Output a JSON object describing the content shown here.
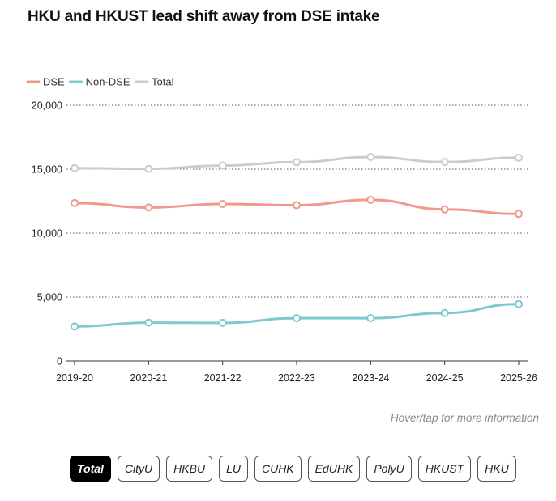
{
  "header": {
    "title": "HKU and HKUST lead shift away from DSE intake"
  },
  "hint": "Hover/tap for more information",
  "colors": {
    "DSE": "#f0988a",
    "Non-DSE": "#7ec9cf",
    "Total": "#cccccc",
    "grid": "#555555",
    "active_tab_bg": "#000000"
  },
  "tabs": {
    "items": [
      "Total",
      "CityU",
      "HKBU",
      "LU",
      "CUHK",
      "EdUHK",
      "PolyU",
      "HKUST",
      "HKU"
    ],
    "selected": "Total"
  },
  "chart_data": {
    "type": "line",
    "title": "HKU and HKUST lead shift away from DSE intake",
    "xlabel": "",
    "ylabel": "",
    "categories": [
      "2019-20",
      "2020-21",
      "2021-22",
      "2022-23",
      "2023-24",
      "2024-25",
      "2025-26"
    ],
    "ylim": [
      0,
      20000
    ],
    "yticks": [
      0,
      5000,
      10000,
      15000,
      20000
    ],
    "ytick_labels": [
      "0",
      "5,000",
      "10,000",
      "15,000",
      "20,000"
    ],
    "grid": "horizontal dotted",
    "legend_position": "top-left",
    "series": [
      {
        "name": "DSE",
        "values": [
          12350,
          12000,
          12280,
          12180,
          12600,
          11850,
          11500
        ]
      },
      {
        "name": "Non-DSE",
        "values": [
          2700,
          3000,
          2980,
          3350,
          3350,
          3750,
          4450
        ]
      },
      {
        "name": "Total",
        "values": [
          15080,
          15020,
          15280,
          15550,
          15950,
          15560,
          15900
        ]
      }
    ]
  }
}
